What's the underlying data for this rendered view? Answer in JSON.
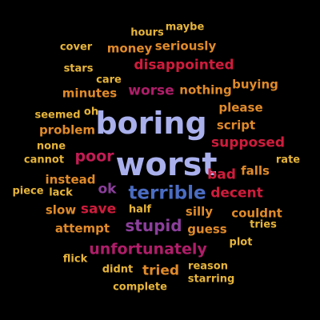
{
  "palette": {
    "background": "#000000",
    "lavender": "#a9b0ec",
    "blue": "#4a6cc2",
    "purple": "#8b3f9b",
    "red": "#d01c3c",
    "crimson": "#c21c55",
    "magenta": "#b01d6a",
    "orange": "#e08a2a",
    "gold": "#e6b43a"
  },
  "words": [
    {
      "id": "maybe",
      "text": "maybe",
      "color": "#e6b43a"
    },
    {
      "id": "hours",
      "text": "hours",
      "color": "#e6b43a"
    },
    {
      "id": "seriously",
      "text": "seriously",
      "color": "#e08a2a"
    },
    {
      "id": "money",
      "text": "money",
      "color": "#e08a2a"
    },
    {
      "id": "cover",
      "text": "cover",
      "color": "#e6b43a"
    },
    {
      "id": "disappointed",
      "text": "disappointed",
      "color": "#d01c3c"
    },
    {
      "id": "stars",
      "text": "stars",
      "color": "#e6b43a"
    },
    {
      "id": "care",
      "text": "care",
      "color": "#e6b43a"
    },
    {
      "id": "buying",
      "text": "buying",
      "color": "#e08a2a"
    },
    {
      "id": "minutes",
      "text": "minutes",
      "color": "#e08a2a"
    },
    {
      "id": "worse",
      "text": "worse",
      "color": "#b01d6a"
    },
    {
      "id": "nothing",
      "text": "nothing",
      "color": "#e08a2a"
    },
    {
      "id": "please",
      "text": "please",
      "color": "#e08a2a"
    },
    {
      "id": "seemed",
      "text": "seemed",
      "color": "#e6b43a"
    },
    {
      "id": "oh",
      "text": "oh",
      "color": "#e6b43a"
    },
    {
      "id": "boring",
      "text": "boring",
      "color": "#a9b0ec"
    },
    {
      "id": "problem",
      "text": "problem",
      "color": "#e08a2a"
    },
    {
      "id": "script",
      "text": "script",
      "color": "#e08a2a"
    },
    {
      "id": "none",
      "text": "none",
      "color": "#e6b43a"
    },
    {
      "id": "supposed",
      "text": "supposed",
      "color": "#d01c3c"
    },
    {
      "id": "poor",
      "text": "poor",
      "color": "#c21c55"
    },
    {
      "id": "cannot",
      "text": "cannot",
      "color": "#e6b43a"
    },
    {
      "id": "worst",
      "text": "worst",
      "color": "#a9b0ec"
    },
    {
      "id": "rate",
      "text": "rate",
      "color": "#e6b43a"
    },
    {
      "id": "bad",
      "text": "bad",
      "color": "#d01c3c"
    },
    {
      "id": "falls",
      "text": "falls",
      "color": "#e08a2a"
    },
    {
      "id": "instead",
      "text": "instead",
      "color": "#e08a2a"
    },
    {
      "id": "piece",
      "text": "piece",
      "color": "#e6b43a"
    },
    {
      "id": "lack",
      "text": "lack",
      "color": "#e6b43a"
    },
    {
      "id": "ok",
      "text": "ok",
      "color": "#8b3f9b"
    },
    {
      "id": "terrible",
      "text": "terrible",
      "color": "#4a6cc2"
    },
    {
      "id": "decent",
      "text": "decent",
      "color": "#d01c3c"
    },
    {
      "id": "slow",
      "text": "slow",
      "color": "#e08a2a"
    },
    {
      "id": "save",
      "text": "save",
      "color": "#d01c3c"
    },
    {
      "id": "half",
      "text": "half",
      "color": "#e6b43a"
    },
    {
      "id": "silly",
      "text": "silly",
      "color": "#e08a2a"
    },
    {
      "id": "couldnt",
      "text": "couldnt",
      "color": "#e08a2a"
    },
    {
      "id": "stupid",
      "text": "stupid",
      "color": "#8b3f9b"
    },
    {
      "id": "tries",
      "text": "tries",
      "color": "#e6b43a"
    },
    {
      "id": "attempt",
      "text": "attempt",
      "color": "#e08a2a"
    },
    {
      "id": "guess",
      "text": "guess",
      "color": "#e08a2a"
    },
    {
      "id": "plot",
      "text": "plot",
      "color": "#e6b43a"
    },
    {
      "id": "unfortunately",
      "text": "unfortunately",
      "color": "#b01d6a"
    },
    {
      "id": "flick",
      "text": "flick",
      "color": "#e6b43a"
    },
    {
      "id": "didnt",
      "text": "didnt",
      "color": "#e6b43a"
    },
    {
      "id": "tried",
      "text": "tried",
      "color": "#e08a2a"
    },
    {
      "id": "reason",
      "text": "reason",
      "color": "#e6b43a"
    },
    {
      "id": "starring",
      "text": "starring",
      "color": "#e6b43a"
    },
    {
      "id": "complete",
      "text": "complete",
      "color": "#e6b43a"
    }
  ]
}
